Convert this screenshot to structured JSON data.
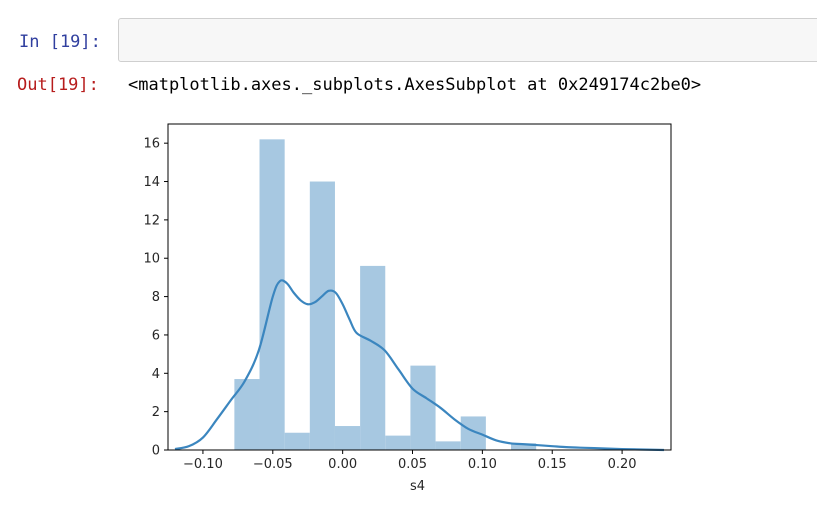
{
  "cell": {
    "in_prompt": "In [19]:",
    "input_value": "",
    "out_prompt": "Out[19]:",
    "out_text": "<matplotlib.axes._subplots.AxesSubplot at 0x249174c2be0>"
  },
  "colors": {
    "in_prompt": "#303f9f",
    "out_prompt": "#b71c1c",
    "bar_fill": "#a7c8e1",
    "kde_line": "#3b86bf"
  },
  "chart_data": {
    "type": "bar",
    "xlabel": "s4",
    "ylabel": "",
    "xlim": [
      -0.125,
      0.235
    ],
    "ylim": [
      0,
      17
    ],
    "x_ticks": [
      -0.1,
      -0.05,
      0.0,
      0.05,
      0.1,
      0.15,
      0.2
    ],
    "x_tick_labels": [
      "−0.10",
      "−0.05",
      "0.00",
      "0.05",
      "0.10",
      "0.15",
      "0.20"
    ],
    "y_ticks": [
      0,
      2,
      4,
      6,
      8,
      10,
      12,
      14,
      16
    ],
    "y_tick_labels": [
      "0",
      "2",
      "4",
      "6",
      "8",
      "10",
      "12",
      "14",
      "16"
    ],
    "grid": false,
    "histogram": {
      "bin_edges": [
        -0.0775,
        -0.0595,
        -0.0415,
        -0.0235,
        -0.0055,
        0.0125,
        0.0305,
        0.0485,
        0.0665,
        0.0845,
        0.1025,
        0.1205,
        0.1385,
        0.1565
      ],
      "values": [
        3.7,
        16.2,
        0.9,
        14.0,
        1.25,
        9.6,
        0.75,
        4.4,
        0.45,
        1.75,
        0.0,
        0.35,
        0.0
      ]
    },
    "kde": {
      "x": [
        -0.12,
        -0.11,
        -0.1,
        -0.09,
        -0.08,
        -0.07,
        -0.06,
        -0.05,
        -0.045,
        -0.04,
        -0.035,
        -0.03,
        -0.025,
        -0.02,
        -0.015,
        -0.01,
        -0.005,
        0.0,
        0.005,
        0.01,
        0.02,
        0.03,
        0.04,
        0.05,
        0.06,
        0.07,
        0.08,
        0.09,
        0.1,
        0.11,
        0.12,
        0.13,
        0.14,
        0.15,
        0.16,
        0.17,
        0.18,
        0.2,
        0.23
      ],
      "y": [
        0.05,
        0.2,
        0.65,
        1.6,
        2.6,
        3.6,
        5.2,
        8.0,
        8.8,
        8.7,
        8.2,
        7.8,
        7.6,
        7.7,
        8.0,
        8.3,
        8.2,
        7.6,
        6.8,
        6.1,
        5.7,
        5.2,
        4.2,
        3.2,
        2.7,
        2.2,
        1.6,
        1.1,
        0.8,
        0.5,
        0.35,
        0.3,
        0.25,
        0.2,
        0.15,
        0.12,
        0.1,
        0.05,
        0.0
      ]
    }
  }
}
